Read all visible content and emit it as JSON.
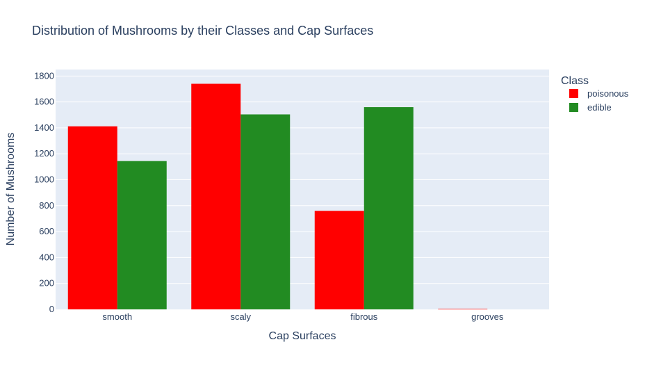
{
  "chart_data": {
    "type": "bar",
    "title": "Distribution of Mushrooms by their Classes and Cap Surfaces",
    "xlabel": "Cap Surfaces",
    "ylabel": "Number of Mushrooms",
    "categories": [
      "smooth",
      "scaly",
      "fibrous",
      "grooves"
    ],
    "series": [
      {
        "name": "poisonous",
        "color": "#ff0000",
        "values": [
          1412,
          1740,
          760,
          4
        ]
      },
      {
        "name": "edible",
        "color": "#228b22",
        "values": [
          1144,
          1504,
          1560,
          0
        ]
      }
    ],
    "ylim": [
      0,
      1850
    ],
    "yticks": [
      0,
      200,
      400,
      600,
      800,
      1000,
      1200,
      1400,
      1600,
      1800
    ],
    "legend": {
      "title": "Class",
      "placement": "top-right"
    },
    "grid": true,
    "plot_background": "#e5ecf6"
  }
}
